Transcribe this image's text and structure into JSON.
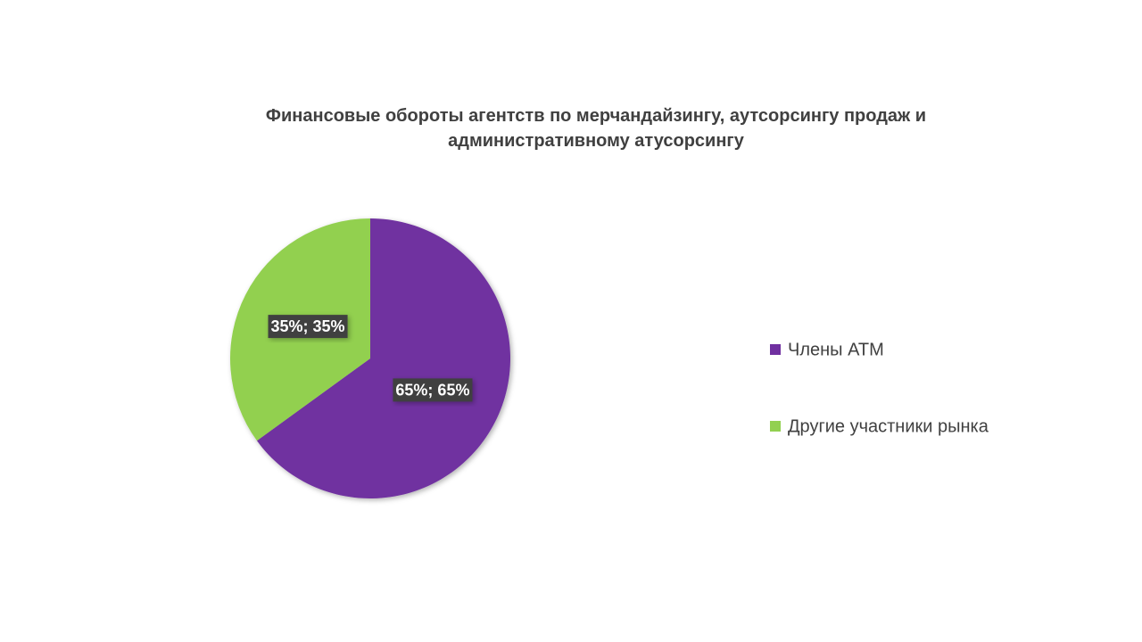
{
  "chart_data": {
    "type": "pie",
    "title": "Финансовые обороты агентств по мерчандайзингу, аутсорсингу продаж и административному атусорсингу",
    "categories": [
      "Члены АТМ",
      "Другие участники рынка"
    ],
    "values": [
      65,
      35
    ],
    "value_labels": [
      "65%; 65%",
      "35%; 35%"
    ],
    "colors": [
      "#7030a0",
      "#92d050"
    ],
    "legend": "right"
  }
}
